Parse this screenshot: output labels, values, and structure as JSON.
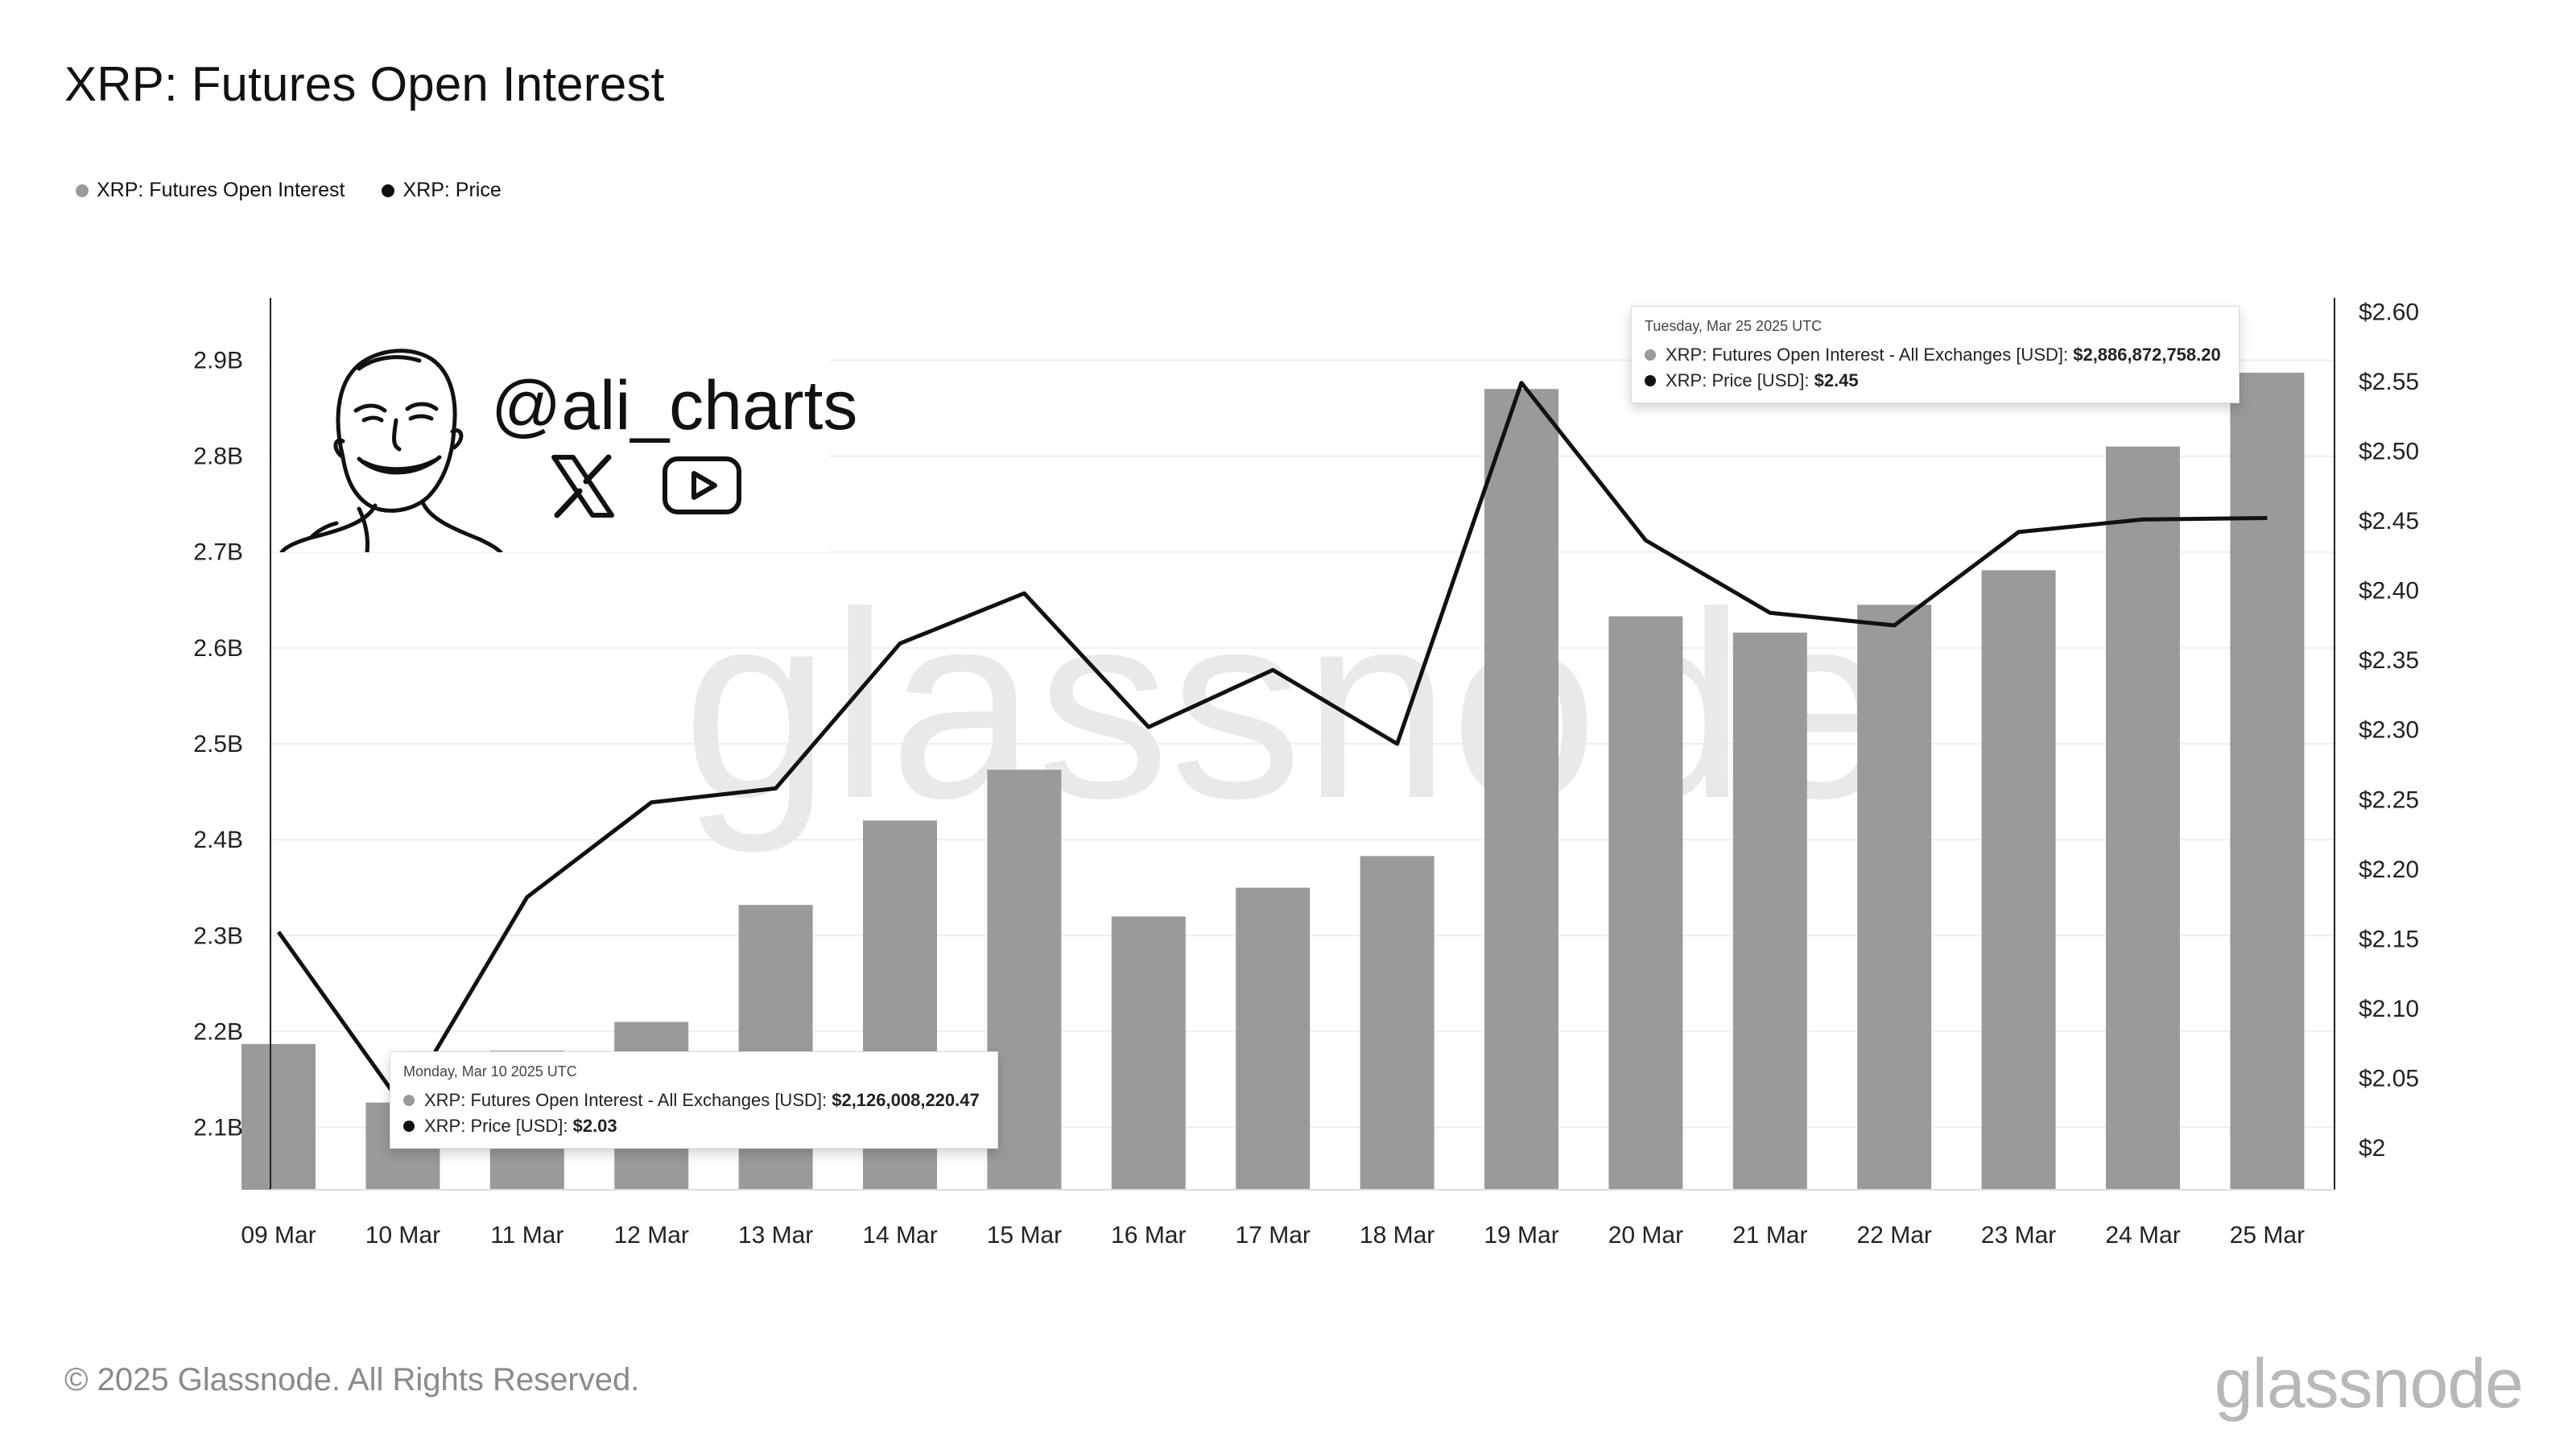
{
  "title": "XRP: Futures Open Interest",
  "legend": {
    "oi_label": "XRP: Futures Open Interest",
    "price_label": "XRP: Price"
  },
  "colors": {
    "bar": "#9a9a9a",
    "line": "#111111",
    "grid": "#eeeeee",
    "watermark": "#e9e9e9"
  },
  "chart_data": {
    "type": "bar+line",
    "title": "XRP: Futures Open Interest",
    "categories": [
      "09 Mar",
      "10 Mar",
      "11 Mar",
      "12 Mar",
      "13 Mar",
      "14 Mar",
      "15 Mar",
      "16 Mar",
      "17 Mar",
      "18 Mar",
      "19 Mar",
      "20 Mar",
      "21 Mar",
      "22 Mar",
      "23 Mar",
      "24 Mar",
      "25 Mar"
    ],
    "series": [
      {
        "name": "XRP: Futures Open Interest",
        "type": "bar",
        "axis": "left",
        "values": [
          2.187,
          2.126,
          2.18,
          2.21,
          2.332,
          2.42,
          2.473,
          2.32,
          2.35,
          2.383,
          2.87,
          2.633,
          2.616,
          2.645,
          2.681,
          2.81,
          2.887
        ]
      },
      {
        "name": "XRP: Price",
        "type": "line",
        "axis": "right",
        "values": [
          2.155,
          2.03,
          2.18,
          2.248,
          2.258,
          2.362,
          2.398,
          2.302,
          2.343,
          2.29,
          2.549,
          2.436,
          2.384,
          2.375,
          2.442,
          2.451,
          2.452
        ]
      }
    ],
    "y_left": {
      "min": 2.035,
      "max": 2.965,
      "ticks": [
        2.1,
        2.2,
        2.3,
        2.4,
        2.5,
        2.6,
        2.7,
        2.8,
        2.9
      ],
      "tick_labels": [
        "2.1B",
        "2.2B",
        "2.3B",
        "2.4B",
        "2.5B",
        "2.6B",
        "2.7B",
        "2.8B",
        "2.9B"
      ]
    },
    "y_right": {
      "min": 1.97,
      "max": 2.61,
      "ticks": [
        2.0,
        2.05,
        2.1,
        2.15,
        2.2,
        2.25,
        2.3,
        2.35,
        2.4,
        2.45,
        2.5,
        2.55,
        2.6
      ],
      "tick_labels": [
        "$2",
        "$2.05",
        "$2.10",
        "$2.15",
        "$2.20",
        "$2.25",
        "$2.30",
        "$2.35",
        "$2.40",
        "$2.45",
        "$2.50",
        "$2.55",
        "$2.60"
      ]
    },
    "grid": true,
    "legend_position": "top-left",
    "watermark": "glassnode"
  },
  "tooltips": [
    {
      "date": "Monday, Mar 10 2025 UTC",
      "oi_label": "XRP: Futures Open Interest - All Exchanges [USD]: ",
      "oi_value": "$2,126,008,220.47",
      "price_label": "XRP: Price [USD]: ",
      "price_value": "$2.03"
    },
    {
      "date": "Tuesday, Mar 25 2025 UTC",
      "oi_label": "XRP: Futures Open Interest - All Exchanges [USD]: ",
      "oi_value": "$2,886,872,758.20",
      "price_label": "XRP: Price [USD]: ",
      "price_value": "$2.45"
    }
  ],
  "branding": {
    "handle": "@ali_charts",
    "x_icon": "x-logo-icon",
    "youtube_icon": "youtube-icon",
    "avatar_icon": "cartoon-face-icon"
  },
  "footer": {
    "copyright": "© 2025 Glassnode. All Rights Reserved.",
    "logo": "glassnode"
  }
}
